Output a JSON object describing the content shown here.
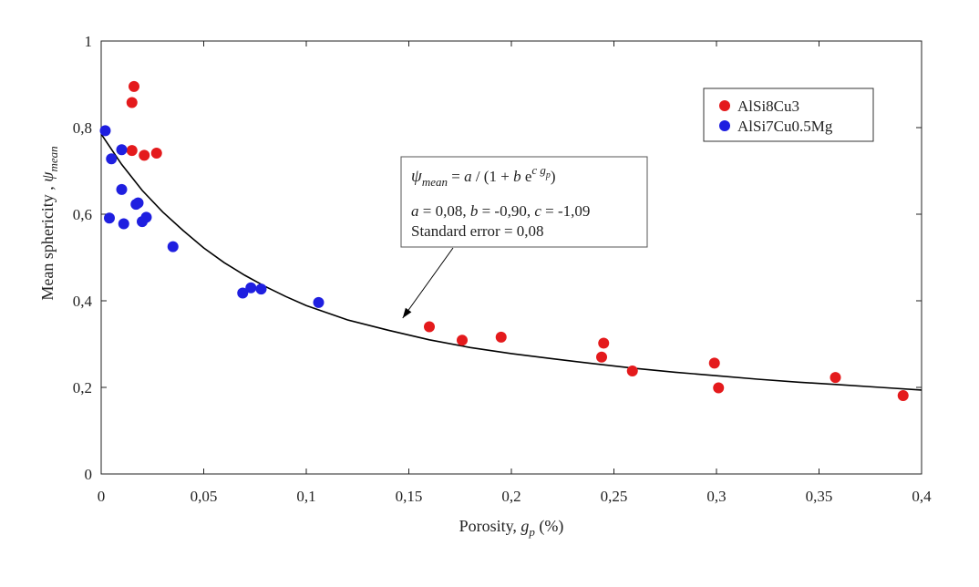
{
  "chart_data": {
    "type": "scatter",
    "xlabel": {
      "main": "Porosity, ",
      "var": "g",
      "sub": "p",
      "unit": " (%)"
    },
    "ylabel": {
      "main": "Mean sphericity , ",
      "var": "ψ",
      "sub": "mean"
    },
    "xlim": [
      0,
      0.4
    ],
    "ylim": [
      0,
      1
    ],
    "xticks": [
      {
        "value": 0,
        "label": "0"
      },
      {
        "value": 0.05,
        "label": "0,05"
      },
      {
        "value": 0.1,
        "label": "0,1"
      },
      {
        "value": 0.15,
        "label": "0,15"
      },
      {
        "value": 0.2,
        "label": "0,2"
      },
      {
        "value": 0.25,
        "label": "0,25"
      },
      {
        "value": 0.3,
        "label": "0,3"
      },
      {
        "value": 0.35,
        "label": "0,35"
      },
      {
        "value": 0.4,
        "label": "0,4"
      }
    ],
    "yticks": [
      {
        "value": 0,
        "label": "0"
      },
      {
        "value": 0.2,
        "label": "0,2"
      },
      {
        "value": 0.4,
        "label": "0,4"
      },
      {
        "value": 0.6,
        "label": "0,6"
      },
      {
        "value": 0.8,
        "label": "0,8"
      },
      {
        "value": 1,
        "label": "1"
      }
    ],
    "grid": false,
    "legend_position": "top-right",
    "series": [
      {
        "name": "AlSi8Cu3",
        "color": "#e41a1c",
        "points": [
          [
            0.016,
            0.895
          ],
          [
            0.015,
            0.858
          ],
          [
            0.015,
            0.747
          ],
          [
            0.021,
            0.736
          ],
          [
            0.027,
            0.741
          ],
          [
            0.16,
            0.34
          ],
          [
            0.176,
            0.309
          ],
          [
            0.195,
            0.316
          ],
          [
            0.244,
            0.27
          ],
          [
            0.245,
            0.302
          ],
          [
            0.259,
            0.238
          ],
          [
            0.299,
            0.256
          ],
          [
            0.301,
            0.199
          ],
          [
            0.358,
            0.223
          ],
          [
            0.391,
            0.181
          ]
        ]
      },
      {
        "name": "AlSi7Cu0.5Mg",
        "color": "#1f1fe0",
        "points": [
          [
            0.002,
            0.793
          ],
          [
            0.005,
            0.728
          ],
          [
            0.01,
            0.749
          ],
          [
            0.01,
            0.657
          ],
          [
            0.004,
            0.591
          ],
          [
            0.011,
            0.578
          ],
          [
            0.017,
            0.623
          ],
          [
            0.018,
            0.626
          ],
          [
            0.02,
            0.583
          ],
          [
            0.022,
            0.593
          ],
          [
            0.035,
            0.525
          ],
          [
            0.069,
            0.418
          ],
          [
            0.073,
            0.43
          ],
          [
            0.078,
            0.427
          ],
          [
            0.106,
            0.396
          ]
        ]
      }
    ],
    "fit": {
      "color": "#000000",
      "points": [
        [
          0,
          0.785
        ],
        [
          0.01,
          0.715
        ],
        [
          0.02,
          0.655
        ],
        [
          0.03,
          0.605
        ],
        [
          0.04,
          0.562
        ],
        [
          0.05,
          0.522
        ],
        [
          0.06,
          0.488
        ],
        [
          0.07,
          0.459
        ],
        [
          0.08,
          0.433
        ],
        [
          0.09,
          0.41
        ],
        [
          0.1,
          0.389
        ],
        [
          0.12,
          0.356
        ],
        [
          0.14,
          0.332
        ],
        [
          0.16,
          0.31
        ],
        [
          0.18,
          0.292
        ],
        [
          0.2,
          0.278
        ],
        [
          0.22,
          0.266
        ],
        [
          0.24,
          0.255
        ],
        [
          0.26,
          0.244
        ],
        [
          0.28,
          0.235
        ],
        [
          0.3,
          0.227
        ],
        [
          0.32,
          0.219
        ],
        [
          0.34,
          0.212
        ],
        [
          0.36,
          0.206
        ],
        [
          0.38,
          0.2
        ],
        [
          0.4,
          0.194
        ]
      ]
    },
    "annotation": {
      "formula": {
        "psi": "ψ",
        "sub": "mean",
        "eq": " = ",
        "a": "a",
        "mid": " / (1 + ",
        "b": "b",
        "e": " e",
        "c": "c",
        "g": " g",
        "gsub": "p",
        "close": ")"
      },
      "params": {
        "a": "a",
        "a_val": " = 0,08, ",
        "b": "b",
        "b_val": " = -0,90, ",
        "c": "c",
        "c_val": " = -1,09"
      },
      "stderr": "Standard error = 0,08",
      "arrow_target": [
        0.147,
        0.36
      ]
    }
  }
}
